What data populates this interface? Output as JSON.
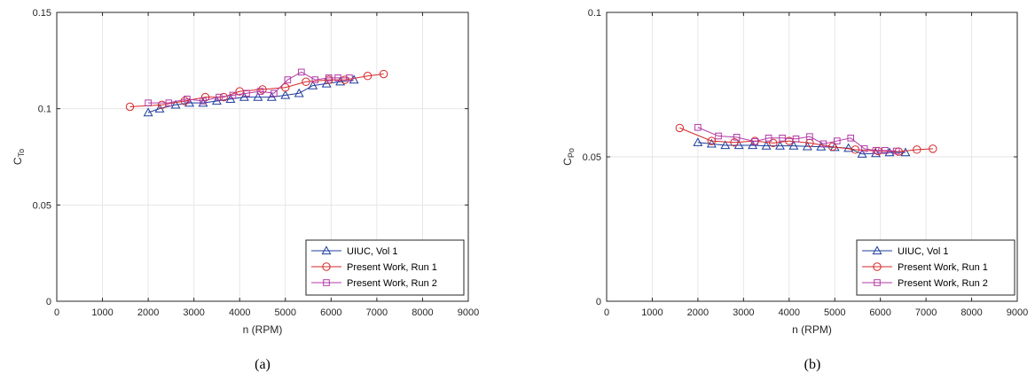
{
  "chart_data": [
    {
      "type": "line",
      "caption": "(a)",
      "xlabel": "n (RPM)",
      "ylabel": "C",
      "ylabel_sub": "To",
      "xlim": [
        0,
        9000
      ],
      "ylim": [
        0,
        0.15
      ],
      "xticks": [
        0,
        1000,
        2000,
        3000,
        4000,
        5000,
        6000,
        7000,
        8000,
        9000
      ],
      "yticks": [
        0,
        0.05,
        0.1,
        0.15
      ],
      "ytick_labels": [
        "0",
        "0.05",
        "0.1",
        "0.15"
      ],
      "grid": true,
      "legend_position": "bottom-right",
      "series": [
        {
          "name": "UIUC, Vol 1",
          "marker": "triangle",
          "color": "#1f3c9e",
          "x": [
            2000,
            2250,
            2600,
            2900,
            3200,
            3500,
            3800,
            4100,
            4400,
            4700,
            5000,
            5300,
            5600,
            5900,
            6200,
            6500
          ],
          "y": [
            0.098,
            0.1,
            0.102,
            0.103,
            0.103,
            0.104,
            0.105,
            0.106,
            0.106,
            0.106,
            0.107,
            0.108,
            0.112,
            0.113,
            0.114,
            0.115
          ]
        },
        {
          "name": "Present Work, Run 1",
          "marker": "circle",
          "color": "#d62728",
          "x": [
            1600,
            2300,
            2800,
            3250,
            3650,
            4000,
            4500,
            5000,
            5450,
            5950,
            6300,
            6800,
            7150
          ],
          "y": [
            0.101,
            0.102,
            0.104,
            0.106,
            0.106,
            0.109,
            0.11,
            0.111,
            0.114,
            0.115,
            0.115,
            0.117,
            0.118
          ]
        },
        {
          "name": "Present Work, Run 2",
          "marker": "square",
          "color": "#b23aa6",
          "x": [
            2000,
            2450,
            2850,
            3200,
            3550,
            3850,
            4150,
            4450,
            4750,
            5050,
            5350,
            5650,
            5950,
            6150,
            6400
          ],
          "y": [
            0.103,
            0.103,
            0.105,
            0.104,
            0.106,
            0.107,
            0.108,
            0.109,
            0.108,
            0.115,
            0.119,
            0.115,
            0.116,
            0.116,
            0.116
          ]
        }
      ]
    },
    {
      "type": "line",
      "caption": "(b)",
      "xlabel": "n (RPM)",
      "ylabel": "C",
      "ylabel_sub": "Po",
      "xlim": [
        0,
        9000
      ],
      "ylim": [
        0,
        0.1
      ],
      "xticks": [
        0,
        1000,
        2000,
        3000,
        4000,
        5000,
        6000,
        7000,
        8000,
        9000
      ],
      "yticks": [
        0,
        0.05,
        0.1
      ],
      "ytick_labels": [
        "0",
        "0.05",
        "0.1"
      ],
      "grid": true,
      "legend_position": "bottom-right",
      "series": [
        {
          "name": "UIUC, Vol 1",
          "marker": "triangle",
          "color": "#1f3c9e",
          "x": [
            2000,
            2300,
            2600,
            2900,
            3200,
            3500,
            3800,
            4100,
            4400,
            4700,
            5000,
            5300,
            5600,
            5900,
            6200,
            6550
          ],
          "y": [
            0.055,
            0.0545,
            0.054,
            0.054,
            0.054,
            0.0538,
            0.0538,
            0.0538,
            0.0536,
            0.0535,
            0.0533,
            0.053,
            0.051,
            0.0512,
            0.0515,
            0.0515
          ]
        },
        {
          "name": "Present Work, Run 1",
          "marker": "circle",
          "color": "#d62728",
          "x": [
            1600,
            2300,
            2800,
            3250,
            3650,
            4000,
            4450,
            4950,
            5450,
            5950,
            6400,
            6800,
            7150
          ],
          "y": [
            0.06,
            0.0555,
            0.055,
            0.0555,
            0.0548,
            0.0555,
            0.0548,
            0.0535,
            0.0525,
            0.052,
            0.0518,
            0.0525,
            0.0528
          ]
        },
        {
          "name": "Present Work, Run 2",
          "marker": "square",
          "color": "#b23aa6",
          "x": [
            2000,
            2450,
            2850,
            3250,
            3550,
            3850,
            4150,
            4450,
            4750,
            5050,
            5350,
            5650,
            5900,
            6100,
            6350
          ],
          "y": [
            0.0602,
            0.0572,
            0.0568,
            0.0553,
            0.0565,
            0.0565,
            0.0562,
            0.057,
            0.0545,
            0.0555,
            0.0565,
            0.0528,
            0.0522,
            0.0522,
            0.052
          ]
        }
      ]
    }
  ]
}
